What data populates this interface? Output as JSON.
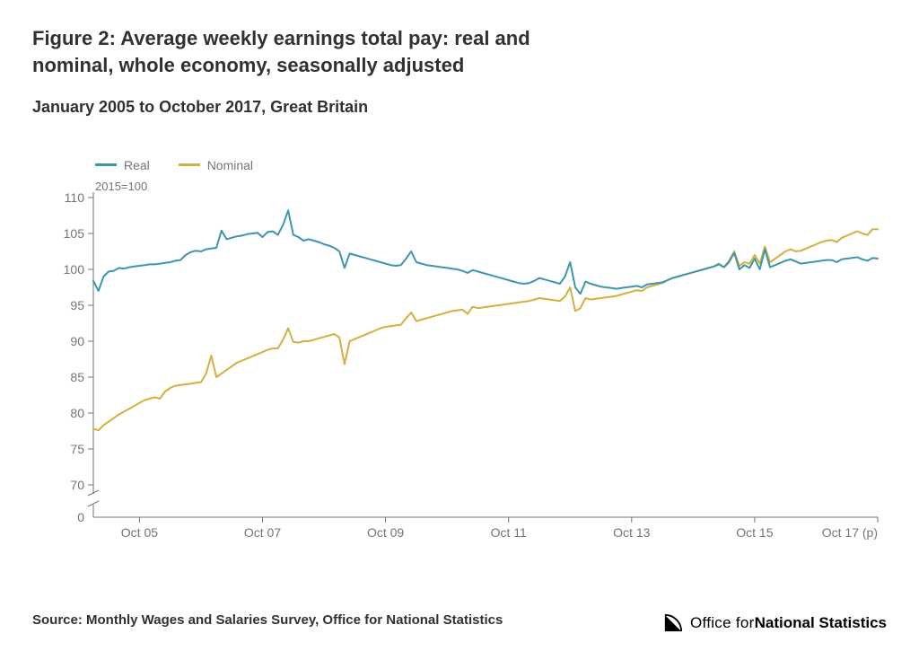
{
  "title": "Figure 2: Average weekly earnings total pay: real and nominal, whole economy, seasonally adjusted",
  "subtitle": "January 2005 to October 2017, Great Britain",
  "source": "Source: Monthly Wages and Salaries Survey, Office for National Statistics",
  "logo": {
    "prefix": "Office for ",
    "bold": "National Statistics"
  },
  "chart": {
    "type": "line",
    "index_note": "2015=100",
    "background_color": "#ffffff",
    "axis_color": "#6f777b",
    "tick_color": "#6f777b",
    "label_color": "#6f777b",
    "label_fontsize": 14,
    "line_width": 2,
    "y": {
      "min": 70,
      "max": 110,
      "tick_step": 5,
      "ticks": [
        70,
        75,
        80,
        85,
        90,
        95,
        100,
        105,
        110
      ],
      "zero_tick": 0,
      "broken_axis": true
    },
    "x": {
      "start": "2005-01",
      "end": "2017-10",
      "n_points": 154,
      "tick_labels": [
        "Oct 05",
        "Oct 07",
        "Oct 09",
        "Oct 11",
        "Oct 13",
        "Oct 15",
        "Oct 17 (p)"
      ],
      "tick_month_indices": [
        9,
        33,
        57,
        81,
        105,
        129,
        153
      ]
    },
    "legend": {
      "items": [
        {
          "label": "Real",
          "color": "#3d96ae"
        },
        {
          "label": "Nominal",
          "color": "#d4b040"
        }
      ]
    },
    "series": {
      "real": {
        "color": "#3d96ae",
        "values": [
          98.4,
          97.0,
          99.0,
          99.7,
          99.8,
          100.2,
          100.1,
          100.3,
          100.4,
          100.5,
          100.6,
          100.7,
          100.7,
          100.8,
          100.9,
          101.0,
          101.2,
          101.3,
          102.0,
          102.4,
          102.6,
          102.5,
          102.8,
          102.9,
          103.0,
          105.4,
          104.2,
          104.4,
          104.6,
          104.7,
          104.9,
          105.0,
          105.1,
          104.5,
          105.2,
          105.3,
          104.8,
          106.2,
          108.2,
          104.8,
          104.5,
          104.0,
          104.2,
          104.0,
          103.8,
          103.5,
          103.3,
          103.0,
          102.5,
          100.2,
          102.2,
          102.0,
          101.8,
          101.6,
          101.4,
          101.2,
          101.0,
          100.8,
          100.6,
          100.5,
          100.6,
          101.5,
          102.5,
          101.0,
          100.8,
          100.6,
          100.5,
          100.4,
          100.3,
          100.2,
          100.1,
          100.0,
          99.8,
          99.5,
          99.9,
          99.7,
          99.5,
          99.3,
          99.1,
          98.9,
          98.7,
          98.5,
          98.3,
          98.1,
          98.0,
          98.1,
          98.4,
          98.8,
          98.6,
          98.4,
          98.2,
          98.0,
          99.0,
          101.0,
          97.5,
          96.6,
          98.3,
          98.0,
          97.8,
          97.6,
          97.5,
          97.4,
          97.3,
          97.4,
          97.5,
          97.6,
          97.7,
          97.5,
          97.9,
          98.0,
          98.1,
          98.2,
          98.5,
          98.8,
          99.0,
          99.2,
          99.4,
          99.6,
          99.8,
          100.0,
          100.2,
          100.4,
          100.7,
          100.3,
          101.0,
          102.3,
          100.0,
          100.6,
          100.2,
          101.5,
          100.0,
          102.8,
          100.3,
          100.6,
          100.9,
          101.2,
          101.4,
          101.1,
          100.8,
          100.9,
          101.0,
          101.1,
          101.2,
          101.3,
          101.3,
          101.0,
          101.4,
          101.5,
          101.6,
          101.7,
          101.4,
          101.2,
          101.6,
          101.5
        ]
      },
      "nominal": {
        "color": "#d4b040",
        "values": [
          77.8,
          77.6,
          78.3,
          78.8,
          79.3,
          79.8,
          80.2,
          80.6,
          81.0,
          81.4,
          81.8,
          82.0,
          82.2,
          82.0,
          83.0,
          83.5,
          83.8,
          83.9,
          84.0,
          84.1,
          84.2,
          84.3,
          85.5,
          88.0,
          85.0,
          85.5,
          86.0,
          86.5,
          87.0,
          87.3,
          87.6,
          87.9,
          88.2,
          88.5,
          88.8,
          89.0,
          89.0,
          90.2,
          91.8,
          89.9,
          89.8,
          90.0,
          90.0,
          90.2,
          90.4,
          90.6,
          90.8,
          91.0,
          90.5,
          86.8,
          90.0,
          90.3,
          90.6,
          90.9,
          91.2,
          91.5,
          91.8,
          92.0,
          92.1,
          92.2,
          92.3,
          93.2,
          94.0,
          92.8,
          93.0,
          93.2,
          93.4,
          93.6,
          93.8,
          94.0,
          94.2,
          94.3,
          94.4,
          93.8,
          94.8,
          94.6,
          94.7,
          94.8,
          94.9,
          95.0,
          95.1,
          95.2,
          95.3,
          95.4,
          95.5,
          95.6,
          95.8,
          96.0,
          95.9,
          95.8,
          95.7,
          95.6,
          96.2,
          97.5,
          94.2,
          94.6,
          96.0,
          95.8,
          95.9,
          96.0,
          96.1,
          96.2,
          96.3,
          96.5,
          96.7,
          96.9,
          97.1,
          97.0,
          97.5,
          97.7,
          97.9,
          98.1,
          98.5,
          98.8,
          99.0,
          99.2,
          99.4,
          99.6,
          99.8,
          100.0,
          100.2,
          100.4,
          100.8,
          100.3,
          101.2,
          102.5,
          100.5,
          101.0,
          100.8,
          102.0,
          100.8,
          103.2,
          101.0,
          101.5,
          102.0,
          102.5,
          102.8,
          102.5,
          102.6,
          102.9,
          103.2,
          103.5,
          103.8,
          104.0,
          104.1,
          103.8,
          104.4,
          104.7,
          105.0,
          105.3,
          105.0,
          104.8,
          105.6,
          105.6
        ]
      }
    }
  }
}
